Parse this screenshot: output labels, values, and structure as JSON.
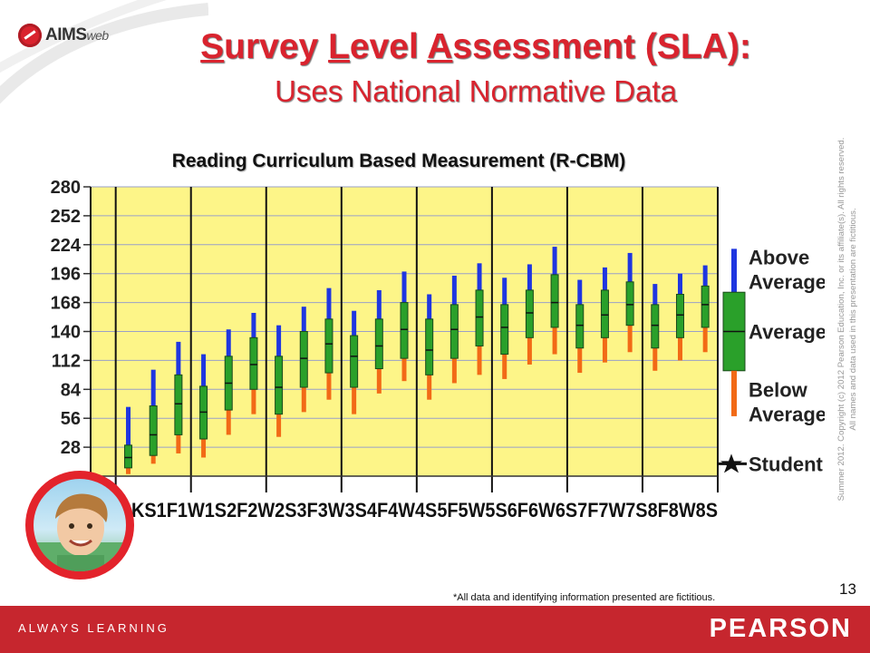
{
  "brand": {
    "logo_text": "AIMS",
    "logo_suffix": "web"
  },
  "slide": {
    "title_line1": "Survey Level Assessment (SLA):",
    "title_line2": "Uses National Normative Data",
    "page_number": "13",
    "footnote": "*All data and identifying information presented are fictitious.",
    "copyright_line1": "Summer 2012.  Copyright (c) 2012 Pearson Education, Inc. or its affiliate(s).  All rights reserved.",
    "copyright_line2": "All names and data used in this presentation  are fictitious."
  },
  "footer": {
    "left": "ALWAYS LEARNING",
    "right": "PEARSON"
  },
  "colors": {
    "accent": "#d9232e",
    "plot_bg": "#fdf588",
    "above": "#1f36e0",
    "average": "#2aa02a",
    "below": "#f26a16"
  },
  "chart_data": {
    "type": "box",
    "title": "Reading Curriculum Based Measurement (R-CBM)",
    "ylim": [
      0,
      280
    ],
    "yticks": [
      0,
      28,
      56,
      84,
      112,
      140,
      168,
      196,
      224,
      252,
      280
    ],
    "ytick_labels": [
      "",
      "28",
      "56",
      "84",
      "112",
      "140",
      "168",
      "196",
      "224",
      "252",
      "280"
    ],
    "categories": [
      "KS",
      "1F",
      "1W",
      "1S",
      "2F",
      "2W",
      "2S",
      "3F",
      "3W",
      "3S",
      "4F",
      "4W",
      "4S",
      "5F",
      "5W",
      "5S",
      "6F",
      "6W",
      "6S",
      "7F",
      "7W",
      "7S",
      "8F",
      "8W",
      "8S"
    ],
    "x_axis_text": "KS1F1W1S2F2W2S3F3W3S4F4W4S5F5W5S6F6W6S7F7W7S8F8W8S",
    "series": [
      {
        "name": "Above Average",
        "label_lines": [
          "Above",
          "Average"
        ]
      },
      {
        "name": "Average",
        "label_lines": [
          "Average"
        ]
      },
      {
        "name": "Below Average",
        "label_lines": [
          "Below",
          "Average"
        ]
      },
      {
        "name": "Student",
        "label_lines": [
          "Student"
        ]
      }
    ],
    "grid": true,
    "legend": "right",
    "boxes": [
      {
        "x": "1F",
        "p10": 2,
        "p25": 8,
        "p50": 18,
        "p75": 30,
        "p90": 67
      },
      {
        "x": "1W",
        "p10": 12,
        "p25": 20,
        "p50": 40,
        "p75": 68,
        "p90": 103
      },
      {
        "x": "1S",
        "p10": 22,
        "p25": 40,
        "p50": 70,
        "p75": 98,
        "p90": 130
      },
      {
        "x": "2F",
        "p10": 18,
        "p25": 36,
        "p50": 62,
        "p75": 87,
        "p90": 118
      },
      {
        "x": "2W",
        "p10": 40,
        "p25": 64,
        "p50": 90,
        "p75": 116,
        "p90": 142
      },
      {
        "x": "2S",
        "p10": 60,
        "p25": 84,
        "p50": 108,
        "p75": 134,
        "p90": 158
      },
      {
        "x": "3F",
        "p10": 38,
        "p25": 60,
        "p50": 86,
        "p75": 116,
        "p90": 146
      },
      {
        "x": "3W",
        "p10": 62,
        "p25": 86,
        "p50": 114,
        "p75": 140,
        "p90": 164
      },
      {
        "x": "3S",
        "p10": 74,
        "p25": 100,
        "p50": 128,
        "p75": 152,
        "p90": 182
      },
      {
        "x": "4F",
        "p10": 60,
        "p25": 86,
        "p50": 116,
        "p75": 136,
        "p90": 160
      },
      {
        "x": "4W",
        "p10": 80,
        "p25": 104,
        "p50": 126,
        "p75": 152,
        "p90": 180
      },
      {
        "x": "4S",
        "p10": 92,
        "p25": 114,
        "p50": 142,
        "p75": 168,
        "p90": 198
      },
      {
        "x": "5F",
        "p10": 74,
        "p25": 98,
        "p50": 122,
        "p75": 152,
        "p90": 176
      },
      {
        "x": "5W",
        "p10": 90,
        "p25": 114,
        "p50": 142,
        "p75": 166,
        "p90": 194
      },
      {
        "x": "5S",
        "p10": 98,
        "p25": 126,
        "p50": 154,
        "p75": 180,
        "p90": 206
      },
      {
        "x": "6F",
        "p10": 94,
        "p25": 118,
        "p50": 144,
        "p75": 166,
        "p90": 192
      },
      {
        "x": "6W",
        "p10": 108,
        "p25": 134,
        "p50": 158,
        "p75": 180,
        "p90": 205
      },
      {
        "x": "6S",
        "p10": 118,
        "p25": 144,
        "p50": 168,
        "p75": 195,
        "p90": 222
      },
      {
        "x": "7F",
        "p10": 100,
        "p25": 124,
        "p50": 146,
        "p75": 166,
        "p90": 190
      },
      {
        "x": "7W",
        "p10": 110,
        "p25": 134,
        "p50": 156,
        "p75": 180,
        "p90": 202
      },
      {
        "x": "7S",
        "p10": 120,
        "p25": 146,
        "p50": 166,
        "p75": 188,
        "p90": 216
      },
      {
        "x": "8F",
        "p10": 102,
        "p25": 124,
        "p50": 146,
        "p75": 166,
        "p90": 186
      },
      {
        "x": "8W",
        "p10": 112,
        "p25": 134,
        "p50": 156,
        "p75": 176,
        "p90": 196
      },
      {
        "x": "8S",
        "p10": 120,
        "p25": 144,
        "p50": 166,
        "p75": 184,
        "p90": 204
      }
    ]
  }
}
